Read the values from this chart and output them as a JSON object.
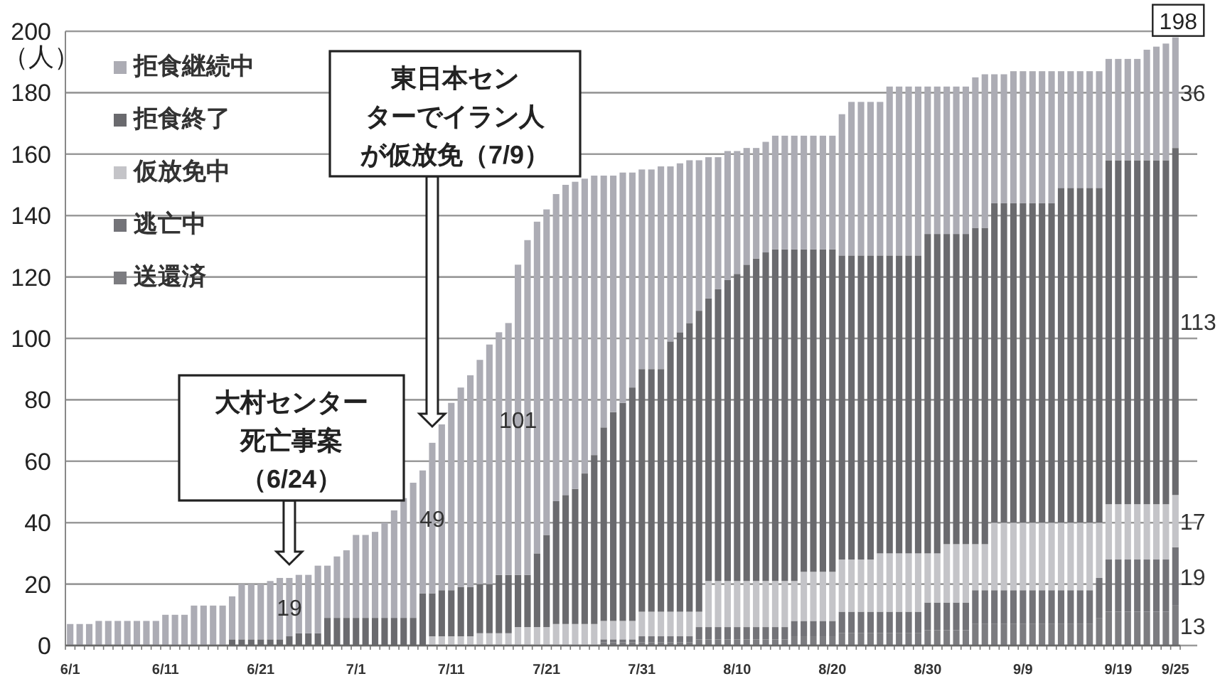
{
  "chart_data": {
    "type": "bar",
    "stacked": true,
    "ylabel": "（人）",
    "ylim": [
      0,
      200
    ],
    "yticks": [
      0,
      20,
      40,
      60,
      80,
      100,
      120,
      140,
      160,
      180,
      200
    ],
    "grid": "y",
    "legend": "top left",
    "categories": [
      "6/1",
      null,
      null,
      null,
      null,
      null,
      null,
      null,
      null,
      null,
      "6/11",
      null,
      null,
      null,
      null,
      null,
      null,
      null,
      null,
      null,
      "6/21",
      null,
      null,
      null,
      null,
      null,
      null,
      null,
      null,
      null,
      "7/1",
      null,
      null,
      null,
      null,
      null,
      null,
      null,
      null,
      null,
      "7/11",
      null,
      null,
      null,
      null,
      null,
      null,
      null,
      null,
      null,
      "7/21",
      null,
      null,
      null,
      null,
      null,
      null,
      null,
      null,
      null,
      "7/31",
      null,
      null,
      null,
      null,
      null,
      null,
      null,
      null,
      null,
      "8/10",
      null,
      null,
      null,
      null,
      null,
      null,
      null,
      null,
      null,
      "8/20",
      null,
      null,
      null,
      null,
      null,
      null,
      null,
      null,
      null,
      "8/30",
      null,
      null,
      null,
      null,
      null,
      null,
      null,
      null,
      null,
      "9/9",
      null,
      null,
      null,
      null,
      null,
      null,
      null,
      null,
      null,
      "9/19",
      null,
      null,
      null,
      null,
      null,
      "9/25"
    ],
    "series": [
      {
        "name": "送還済",
        "color": "#7c7c80",
        "values": [
          0,
          0,
          0,
          0,
          0,
          0,
          0,
          0,
          0,
          0,
          0,
          0,
          0,
          0,
          0,
          0,
          0,
          0,
          0,
          0,
          0,
          0,
          0,
          0,
          0,
          0,
          0,
          0,
          0,
          0,
          0,
          0,
          0,
          0,
          0,
          0,
          0,
          0,
          0,
          0,
          0,
          0,
          0,
          0,
          0,
          0,
          0,
          0,
          0,
          0,
          0,
          0,
          0,
          0,
          0,
          0,
          1,
          1,
          1,
          1,
          1,
          1,
          1,
          1,
          1,
          1,
          2,
          2,
          2,
          2,
          2,
          2,
          2,
          2,
          2,
          2,
          3,
          3,
          3,
          3,
          3,
          4,
          4,
          4,
          4,
          4,
          4,
          4,
          4,
          4,
          5,
          5,
          5,
          5,
          5,
          7,
          7,
          7,
          7,
          7,
          7,
          7,
          7,
          7,
          7,
          7,
          7,
          7,
          9,
          11,
          11,
          11,
          11,
          11,
          11,
          11,
          13
        ],
        "value_labels": [
          null,
          null,
          null,
          null,
          null,
          null,
          null,
          null,
          null,
          null,
          null,
          null,
          null,
          null,
          null,
          null,
          null,
          null,
          null,
          null,
          null,
          null,
          null,
          null,
          null,
          null,
          null,
          null,
          null,
          null,
          null,
          null,
          null,
          null,
          null,
          null,
          null,
          null,
          null,
          null,
          null,
          null,
          null,
          null,
          null,
          null,
          null,
          null,
          null,
          null,
          null,
          null,
          null,
          null,
          null,
          null,
          null,
          null,
          null,
          null,
          null,
          null,
          null,
          null,
          null,
          null,
          null,
          null,
          null,
          null,
          null,
          null,
          null,
          null,
          null,
          null,
          null,
          null,
          null,
          null,
          null,
          null,
          null,
          null,
          null,
          null,
          null,
          null,
          null,
          null,
          null,
          null,
          null,
          null,
          null,
          null,
          null,
          null,
          null,
          null,
          null,
          null,
          null,
          null,
          null,
          null,
          null,
          null,
          null,
          null,
          null,
          null,
          null,
          null,
          null,
          null,
          "13"
        ]
      },
      {
        "name": "逃亡中",
        "color": "#737378",
        "values": [
          0,
          0,
          0,
          0,
          0,
          0,
          0,
          0,
          0,
          0,
          0,
          0,
          0,
          0,
          0,
          0,
          0,
          0,
          0,
          0,
          0,
          0,
          0,
          0,
          0,
          0,
          0,
          0,
          0,
          0,
          0,
          0,
          0,
          0,
          0,
          0,
          0,
          0,
          0,
          0,
          0,
          0,
          0,
          0,
          0,
          0,
          0,
          0,
          0,
          0,
          0,
          0,
          0,
          0,
          0,
          0,
          1,
          1,
          1,
          1,
          2,
          2,
          2,
          2,
          2,
          2,
          4,
          4,
          4,
          4,
          4,
          4,
          4,
          4,
          4,
          4,
          5,
          5,
          5,
          5,
          5,
          7,
          7,
          7,
          7,
          7,
          7,
          7,
          7,
          7,
          9,
          9,
          9,
          9,
          9,
          11,
          11,
          11,
          11,
          11,
          11,
          11,
          11,
          11,
          11,
          11,
          11,
          11,
          13,
          17,
          17,
          17,
          17,
          17,
          17,
          17,
          19
        ],
        "value_labels": [
          null,
          null,
          null,
          null,
          null,
          null,
          null,
          null,
          null,
          null,
          null,
          null,
          null,
          null,
          null,
          null,
          null,
          null,
          null,
          null,
          null,
          null,
          null,
          null,
          null,
          null,
          null,
          null,
          null,
          null,
          null,
          null,
          null,
          null,
          null,
          null,
          null,
          null,
          null,
          null,
          null,
          null,
          null,
          null,
          null,
          null,
          null,
          null,
          null,
          null,
          null,
          null,
          null,
          null,
          null,
          null,
          null,
          null,
          null,
          null,
          null,
          null,
          null,
          null,
          null,
          null,
          null,
          null,
          null,
          null,
          null,
          null,
          null,
          null,
          null,
          null,
          null,
          null,
          null,
          null,
          null,
          null,
          null,
          null,
          null,
          null,
          null,
          null,
          null,
          null,
          null,
          null,
          null,
          null,
          null,
          null,
          null,
          null,
          null,
          null,
          null,
          null,
          null,
          null,
          null,
          null,
          null,
          null,
          null,
          null,
          null,
          null,
          null,
          null,
          null,
          null,
          "19"
        ]
      },
      {
        "name": "仮放免中",
        "color": "#c4c4c8",
        "values": [
          0,
          0,
          0,
          0,
          0,
          0,
          0,
          0,
          0,
          0,
          0,
          0,
          0,
          0,
          0,
          0,
          0,
          0,
          0,
          0,
          0,
          0,
          0,
          0,
          0,
          0,
          0,
          0,
          0,
          0,
          0,
          0,
          0,
          0,
          0,
          0,
          0,
          0,
          3,
          3,
          3,
          3,
          3,
          4,
          4,
          4,
          4,
          6,
          6,
          6,
          6,
          7,
          7,
          7,
          7,
          7,
          6,
          6,
          6,
          6,
          8,
          8,
          8,
          8,
          8,
          8,
          5,
          15,
          15,
          15,
          15,
          15,
          15,
          15,
          15,
          15,
          13,
          16,
          16,
          16,
          16,
          17,
          17,
          17,
          17,
          19,
          19,
          19,
          19,
          19,
          16,
          16,
          19,
          19,
          19,
          15,
          15,
          22,
          22,
          22,
          22,
          22,
          22,
          22,
          22,
          22,
          22,
          22,
          18,
          18,
          18,
          18,
          18,
          18,
          18,
          18,
          17
        ],
        "value_labels": [
          null,
          null,
          null,
          null,
          null,
          null,
          null,
          null,
          null,
          null,
          null,
          null,
          null,
          null,
          null,
          null,
          null,
          null,
          null,
          null,
          null,
          null,
          null,
          null,
          null,
          null,
          null,
          null,
          null,
          null,
          null,
          null,
          null,
          null,
          null,
          null,
          null,
          null,
          null,
          null,
          null,
          null,
          null,
          null,
          null,
          null,
          null,
          null,
          null,
          null,
          null,
          null,
          null,
          null,
          null,
          null,
          null,
          null,
          null,
          null,
          null,
          null,
          null,
          null,
          null,
          null,
          null,
          null,
          null,
          null,
          null,
          null,
          null,
          null,
          null,
          null,
          null,
          null,
          null,
          null,
          null,
          null,
          null,
          null,
          null,
          null,
          null,
          null,
          null,
          null,
          null,
          null,
          null,
          null,
          null,
          null,
          null,
          null,
          null,
          null,
          null,
          null,
          null,
          null,
          null,
          null,
          null,
          null,
          null,
          null,
          null,
          null,
          null,
          null,
          null,
          null,
          "17"
        ]
      },
      {
        "name": "拒食終了",
        "color": "#6a6a6e",
        "values": [
          0,
          0,
          0,
          0,
          0,
          0,
          0,
          0,
          0,
          0,
          0,
          0,
          0,
          0,
          0,
          0,
          0,
          2,
          2,
          2,
          2,
          2,
          2,
          3,
          4,
          4,
          4,
          9,
          9,
          9,
          9,
          9,
          9,
          9,
          9,
          9,
          9,
          17,
          14,
          15,
          15,
          16,
          16,
          16,
          16,
          19,
          19,
          17,
          17,
          24,
          30,
          40,
          42,
          44,
          49,
          55,
          63,
          68,
          71,
          76,
          79,
          79,
          79,
          88,
          91,
          94,
          98,
          92,
          95,
          98,
          100,
          103,
          105,
          107,
          108,
          108,
          108,
          105,
          105,
          105,
          105,
          99,
          99,
          99,
          99,
          97,
          97,
          97,
          97,
          97,
          104,
          104,
          101,
          101,
          101,
          103,
          103,
          104,
          104,
          104,
          104,
          104,
          104,
          104,
          109,
          109,
          109,
          109,
          109,
          112,
          112,
          112,
          112,
          112,
          112,
          112,
          113
        ],
        "value_labels": [
          null,
          null,
          null,
          null,
          null,
          null,
          null,
          null,
          null,
          null,
          null,
          null,
          null,
          null,
          null,
          null,
          null,
          null,
          null,
          null,
          null,
          null,
          null,
          null,
          null,
          null,
          null,
          null,
          null,
          null,
          null,
          null,
          null,
          null,
          null,
          null,
          null,
          null,
          null,
          null,
          null,
          null,
          null,
          null,
          null,
          null,
          null,
          null,
          null,
          null,
          null,
          null,
          null,
          null,
          null,
          null,
          null,
          null,
          null,
          null,
          null,
          null,
          null,
          null,
          null,
          null,
          null,
          null,
          null,
          null,
          null,
          null,
          null,
          null,
          null,
          null,
          null,
          null,
          null,
          null,
          null,
          null,
          null,
          null,
          null,
          null,
          null,
          null,
          null,
          null,
          null,
          null,
          null,
          null,
          null,
          null,
          null,
          null,
          null,
          null,
          null,
          null,
          null,
          null,
          null,
          null,
          null,
          null,
          null,
          null,
          null,
          null,
          null,
          null,
          null,
          null,
          "113"
        ]
      },
      {
        "name": "拒食継続中",
        "color": "#acacb4",
        "values": [
          7,
          7,
          7,
          8,
          8,
          8,
          8,
          8,
          8,
          8,
          10,
          10,
          10,
          13,
          13,
          13,
          13,
          14,
          18,
          18,
          18,
          19,
          20,
          19,
          19,
          19,
          22,
          17,
          20,
          22,
          27,
          27,
          28,
          31,
          35,
          39,
          44,
          40,
          49,
          54,
          61,
          65,
          69,
          73,
          78,
          79,
          82,
          101,
          109,
          108,
          106,
          100,
          101,
          100,
          96,
          91,
          82,
          77,
          75,
          70,
          65,
          65,
          66,
          57,
          55,
          53,
          49,
          46,
          43,
          42,
          40,
          38,
          36,
          36,
          37,
          37,
          37,
          37,
          37,
          37,
          37,
          46,
          50,
          50,
          50,
          50,
          55,
          55,
          55,
          55,
          48,
          48,
          48,
          48,
          48,
          49,
          50,
          42,
          42,
          43,
          43,
          43,
          43,
          43,
          38,
          38,
          38,
          38,
          38,
          33,
          33,
          33,
          33,
          36,
          37,
          38,
          36
        ],
        "value_labels": [
          null,
          null,
          null,
          null,
          null,
          null,
          null,
          null,
          null,
          null,
          null,
          null,
          null,
          null,
          null,
          null,
          null,
          null,
          null,
          null,
          null,
          null,
          null,
          "19",
          null,
          null,
          null,
          null,
          null,
          null,
          null,
          null,
          null,
          null,
          null,
          null,
          null,
          null,
          "49",
          null,
          null,
          null,
          null,
          null,
          null,
          null,
          null,
          "101",
          null,
          null,
          null,
          null,
          null,
          null,
          null,
          null,
          null,
          null,
          null,
          null,
          null,
          null,
          null,
          null,
          null,
          null,
          null,
          null,
          null,
          null,
          null,
          null,
          null,
          null,
          null,
          null,
          null,
          null,
          null,
          null,
          null,
          null,
          null,
          null,
          null,
          null,
          null,
          null,
          null,
          null,
          null,
          null,
          null,
          null,
          null,
          null,
          null,
          null,
          null,
          null,
          null,
          null,
          null,
          null,
          null,
          null,
          null,
          null,
          null,
          null,
          null,
          null,
          null,
          null,
          null,
          null,
          "36"
        ]
      }
    ],
    "totals": [
      null,
      null,
      null,
      null,
      null,
      null,
      null,
      null,
      null,
      null,
      null,
      null,
      null,
      null,
      null,
      null,
      null,
      null,
      null,
      null,
      null,
      null,
      null,
      null,
      null,
      null,
      null,
      null,
      null,
      null,
      null,
      null,
      null,
      null,
      null,
      null,
      null,
      null,
      null,
      null,
      null,
      null,
      null,
      null,
      null,
      null,
      null,
      null,
      null,
      null,
      null,
      null,
      null,
      null,
      null,
      null,
      null,
      null,
      null,
      null,
      null,
      null,
      null,
      null,
      null,
      null,
      null,
      null,
      null,
      null,
      null,
      null,
      null,
      null,
      null,
      null,
      null,
      null,
      null,
      null,
      null,
      null,
      null,
      null,
      null,
      null,
      null,
      null,
      null,
      null,
      null,
      null,
      null,
      null,
      null,
      null,
      null,
      null,
      null,
      null,
      null,
      null,
      null,
      null,
      null,
      null,
      null,
      null,
      null,
      null,
      null,
      null,
      null,
      null,
      null,
      null,
      "198"
    ],
    "annotations": [
      "大村センター死亡事案（6/24）",
      "東日本センターでイラン人が仮放免（7/9）"
    ]
  }
}
